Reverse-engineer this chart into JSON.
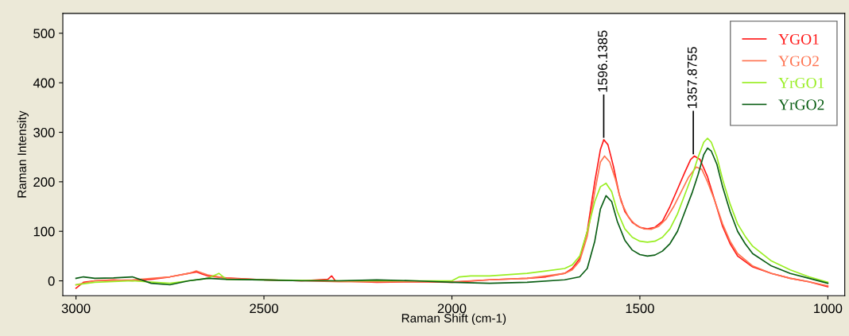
{
  "chart_data": {
    "type": "line",
    "xlabel": "Raman Shift (cm-1)",
    "ylabel": "Raman Intensity",
    "xlim": [
      3035,
      955
    ],
    "xticks": [
      3000,
      2500,
      2000,
      1500,
      1000
    ],
    "ylim": [
      -30,
      540
    ],
    "yticks": [
      0,
      100,
      200,
      300,
      400,
      500
    ],
    "grid": false,
    "legend": "top right",
    "marker": "none",
    "line_style": "solid",
    "annotations": [
      {
        "text": "1596.1385",
        "x": 1596.1385,
        "y": 285
      },
      {
        "text": "1357.8755",
        "x": 1357.8755,
        "y": 252
      }
    ],
    "series": [
      {
        "name": "YGO1",
        "color": "#ff1a1a",
        "x": [
          3000,
          2980,
          2950,
          2900,
          2850,
          2800,
          2750,
          2700,
          2680,
          2650,
          2600,
          2500,
          2400,
          2330,
          2320,
          2310,
          2200,
          2100,
          2000,
          1900,
          1800,
          1750,
          1700,
          1680,
          1660,
          1640,
          1620,
          1605,
          1596,
          1585,
          1570,
          1555,
          1540,
          1520,
          1500,
          1480,
          1460,
          1440,
          1420,
          1400,
          1380,
          1365,
          1355,
          1340,
          1320,
          1300,
          1280,
          1260,
          1240,
          1200,
          1150,
          1100,
          1050,
          1000
        ],
        "values": [
          -15,
          -3,
          0,
          2,
          0,
          3,
          8,
          15,
          18,
          10,
          6,
          2,
          0,
          3,
          10,
          0,
          -3,
          -2,
          -3,
          2,
          5,
          8,
          15,
          25,
          45,
          100,
          200,
          265,
          285,
          275,
          230,
          175,
          140,
          118,
          108,
          105,
          108,
          120,
          150,
          185,
          220,
          245,
          252,
          245,
          210,
          160,
          110,
          75,
          50,
          28,
          15,
          5,
          -2,
          -12
        ]
      },
      {
        "name": "YGO2",
        "color": "#ff7350",
        "x": [
          3000,
          2950,
          2850,
          2750,
          2700,
          2680,
          2650,
          2600,
          2500,
          2300,
          2100,
          2000,
          1900,
          1800,
          1750,
          1700,
          1680,
          1660,
          1640,
          1620,
          1605,
          1594,
          1580,
          1565,
          1550,
          1530,
          1510,
          1490,
          1470,
          1450,
          1430,
          1410,
          1390,
          1370,
          1350,
          1335,
          1320,
          1300,
          1280,
          1260,
          1240,
          1200,
          1150,
          1100,
          1050,
          1000
        ],
        "values": [
          -8,
          0,
          2,
          8,
          15,
          20,
          12,
          5,
          2,
          -2,
          -2,
          -2,
          2,
          5,
          10,
          15,
          22,
          40,
          90,
          180,
          240,
          252,
          240,
          205,
          160,
          128,
          112,
          105,
          104,
          110,
          125,
          150,
          180,
          210,
          230,
          225,
          200,
          160,
          115,
          80,
          55,
          30,
          15,
          5,
          -2,
          -10
        ]
      },
      {
        "name": "YrGO1",
        "color": "#99ee22",
        "x": [
          3000,
          2950,
          2850,
          2750,
          2700,
          2650,
          2620,
          2600,
          2500,
          2300,
          2100,
          2000,
          1980,
          1950,
          1900,
          1800,
          1750,
          1700,
          1680,
          1660,
          1640,
          1620,
          1605,
          1590,
          1575,
          1560,
          1540,
          1520,
          1500,
          1480,
          1460,
          1440,
          1420,
          1400,
          1380,
          1360,
          1345,
          1330,
          1320,
          1310,
          1295,
          1280,
          1260,
          1240,
          1220,
          1200,
          1150,
          1100,
          1050,
          1000
        ],
        "values": [
          -8,
          -3,
          0,
          -5,
          0,
          5,
          15,
          3,
          2,
          0,
          0,
          0,
          8,
          10,
          10,
          15,
          20,
          25,
          32,
          50,
          100,
          160,
          190,
          197,
          180,
          140,
          105,
          88,
          80,
          78,
          80,
          88,
          105,
          135,
          175,
          215,
          250,
          280,
          288,
          280,
          250,
          205,
          155,
          115,
          90,
          70,
          40,
          22,
          8,
          -3
        ]
      },
      {
        "name": "YrGO2",
        "color": "#0a5e14",
        "x": [
          3000,
          2980,
          2950,
          2900,
          2850,
          2800,
          2750,
          2700,
          2650,
          2600,
          2500,
          2400,
          2300,
          2200,
          2100,
          2000,
          1900,
          1800,
          1700,
          1660,
          1640,
          1620,
          1605,
          1590,
          1575,
          1560,
          1540,
          1520,
          1500,
          1480,
          1460,
          1440,
          1420,
          1400,
          1380,
          1360,
          1345,
          1330,
          1320,
          1310,
          1295,
          1280,
          1260,
          1240,
          1220,
          1200,
          1150,
          1100,
          1050,
          1000
        ],
        "values": [
          5,
          8,
          5,
          6,
          8,
          -5,
          -8,
          0,
          5,
          3,
          2,
          0,
          0,
          2,
          0,
          -3,
          -5,
          -3,
          2,
          8,
          25,
          80,
          145,
          172,
          160,
          120,
          82,
          62,
          53,
          50,
          52,
          60,
          75,
          100,
          140,
          180,
          215,
          255,
          268,
          262,
          235,
          190,
          140,
          100,
          75,
          55,
          30,
          15,
          5,
          -5
        ]
      }
    ]
  }
}
